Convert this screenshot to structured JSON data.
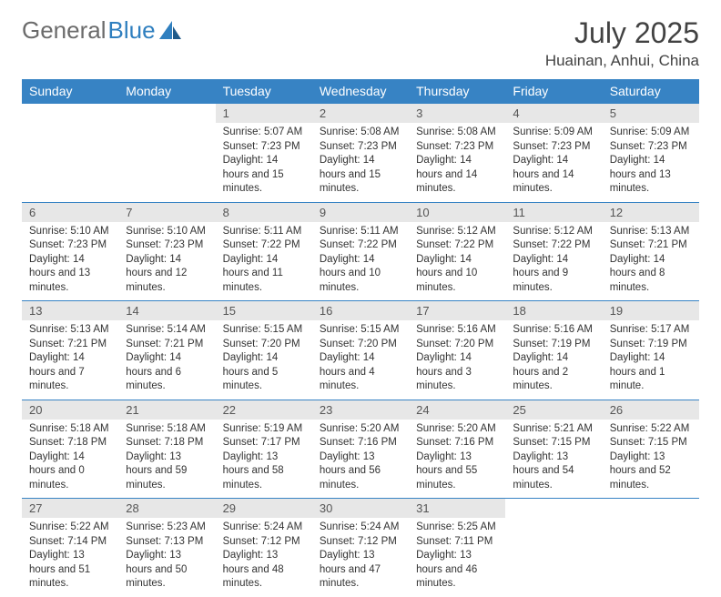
{
  "logo": {
    "word1": "General",
    "word2": "Blue"
  },
  "title": "July 2025",
  "location": "Huainan, Anhui, China",
  "day_headers": [
    "Sunday",
    "Monday",
    "Tuesday",
    "Wednesday",
    "Thursday",
    "Friday",
    "Saturday"
  ],
  "colors": {
    "header_bg": "#3783c4",
    "header_text": "#ffffff",
    "daynum_bg": "#e7e7e7",
    "border": "#3783c4",
    "logo_grey": "#6b6b6b",
    "logo_blue": "#2f7fbf"
  },
  "weeks": [
    [
      {
        "empty": true
      },
      {
        "empty": true
      },
      {
        "n": "1",
        "sunrise": "5:07 AM",
        "sunset": "7:23 PM",
        "daylight": "14 hours and 15 minutes."
      },
      {
        "n": "2",
        "sunrise": "5:08 AM",
        "sunset": "7:23 PM",
        "daylight": "14 hours and 15 minutes."
      },
      {
        "n": "3",
        "sunrise": "5:08 AM",
        "sunset": "7:23 PM",
        "daylight": "14 hours and 14 minutes."
      },
      {
        "n": "4",
        "sunrise": "5:09 AM",
        "sunset": "7:23 PM",
        "daylight": "14 hours and 14 minutes."
      },
      {
        "n": "5",
        "sunrise": "5:09 AM",
        "sunset": "7:23 PM",
        "daylight": "14 hours and 13 minutes."
      }
    ],
    [
      {
        "n": "6",
        "sunrise": "5:10 AM",
        "sunset": "7:23 PM",
        "daylight": "14 hours and 13 minutes."
      },
      {
        "n": "7",
        "sunrise": "5:10 AM",
        "sunset": "7:23 PM",
        "daylight": "14 hours and 12 minutes."
      },
      {
        "n": "8",
        "sunrise": "5:11 AM",
        "sunset": "7:22 PM",
        "daylight": "14 hours and 11 minutes."
      },
      {
        "n": "9",
        "sunrise": "5:11 AM",
        "sunset": "7:22 PM",
        "daylight": "14 hours and 10 minutes."
      },
      {
        "n": "10",
        "sunrise": "5:12 AM",
        "sunset": "7:22 PM",
        "daylight": "14 hours and 10 minutes."
      },
      {
        "n": "11",
        "sunrise": "5:12 AM",
        "sunset": "7:22 PM",
        "daylight": "14 hours and 9 minutes."
      },
      {
        "n": "12",
        "sunrise": "5:13 AM",
        "sunset": "7:21 PM",
        "daylight": "14 hours and 8 minutes."
      }
    ],
    [
      {
        "n": "13",
        "sunrise": "5:13 AM",
        "sunset": "7:21 PM",
        "daylight": "14 hours and 7 minutes."
      },
      {
        "n": "14",
        "sunrise": "5:14 AM",
        "sunset": "7:21 PM",
        "daylight": "14 hours and 6 minutes."
      },
      {
        "n": "15",
        "sunrise": "5:15 AM",
        "sunset": "7:20 PM",
        "daylight": "14 hours and 5 minutes."
      },
      {
        "n": "16",
        "sunrise": "5:15 AM",
        "sunset": "7:20 PM",
        "daylight": "14 hours and 4 minutes."
      },
      {
        "n": "17",
        "sunrise": "5:16 AM",
        "sunset": "7:20 PM",
        "daylight": "14 hours and 3 minutes."
      },
      {
        "n": "18",
        "sunrise": "5:16 AM",
        "sunset": "7:19 PM",
        "daylight": "14 hours and 2 minutes."
      },
      {
        "n": "19",
        "sunrise": "5:17 AM",
        "sunset": "7:19 PM",
        "daylight": "14 hours and 1 minute."
      }
    ],
    [
      {
        "n": "20",
        "sunrise": "5:18 AM",
        "sunset": "7:18 PM",
        "daylight": "14 hours and 0 minutes."
      },
      {
        "n": "21",
        "sunrise": "5:18 AM",
        "sunset": "7:18 PM",
        "daylight": "13 hours and 59 minutes."
      },
      {
        "n": "22",
        "sunrise": "5:19 AM",
        "sunset": "7:17 PM",
        "daylight": "13 hours and 58 minutes."
      },
      {
        "n": "23",
        "sunrise": "5:20 AM",
        "sunset": "7:16 PM",
        "daylight": "13 hours and 56 minutes."
      },
      {
        "n": "24",
        "sunrise": "5:20 AM",
        "sunset": "7:16 PM",
        "daylight": "13 hours and 55 minutes."
      },
      {
        "n": "25",
        "sunrise": "5:21 AM",
        "sunset": "7:15 PM",
        "daylight": "13 hours and 54 minutes."
      },
      {
        "n": "26",
        "sunrise": "5:22 AM",
        "sunset": "7:15 PM",
        "daylight": "13 hours and 52 minutes."
      }
    ],
    [
      {
        "n": "27",
        "sunrise": "5:22 AM",
        "sunset": "7:14 PM",
        "daylight": "13 hours and 51 minutes."
      },
      {
        "n": "28",
        "sunrise": "5:23 AM",
        "sunset": "7:13 PM",
        "daylight": "13 hours and 50 minutes."
      },
      {
        "n": "29",
        "sunrise": "5:24 AM",
        "sunset": "7:12 PM",
        "daylight": "13 hours and 48 minutes."
      },
      {
        "n": "30",
        "sunrise": "5:24 AM",
        "sunset": "7:12 PM",
        "daylight": "13 hours and 47 minutes."
      },
      {
        "n": "31",
        "sunrise": "5:25 AM",
        "sunset": "7:11 PM",
        "daylight": "13 hours and 46 minutes."
      },
      {
        "empty": true
      },
      {
        "empty": true
      }
    ]
  ],
  "labels": {
    "sunrise": "Sunrise:",
    "sunset": "Sunset:",
    "daylight": "Daylight:"
  }
}
